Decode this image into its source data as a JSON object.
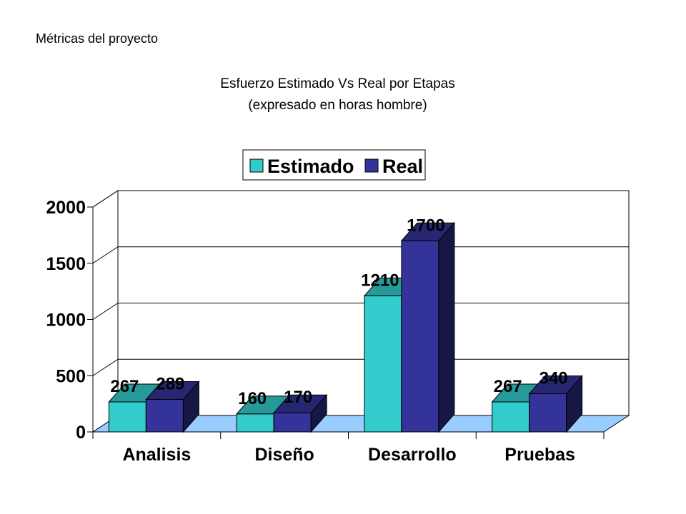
{
  "header": {
    "title": "Métricas del proyecto"
  },
  "chart_data": {
    "type": "bar",
    "title": "Esfuerzo Estimado Vs Real por Etapas",
    "subtitle": "(expresado en horas hombre)",
    "categories": [
      "Analisis",
      "Diseño",
      "Desarrollo",
      "Pruebas"
    ],
    "series": [
      {
        "name": "Estimado",
        "values": [
          267,
          160,
          1210,
          267
        ],
        "color": "#33CCCC"
      },
      {
        "name": "Real",
        "values": [
          289,
          170,
          1700,
          340
        ],
        "color": "#333399"
      }
    ],
    "yticks": [
      0,
      500,
      1000,
      1500,
      2000
    ],
    "ylim": [
      0,
      2000
    ],
    "grid": true,
    "legend_position": "top",
    "style": "3d-clustered",
    "floor_color": "#99CCFF"
  }
}
